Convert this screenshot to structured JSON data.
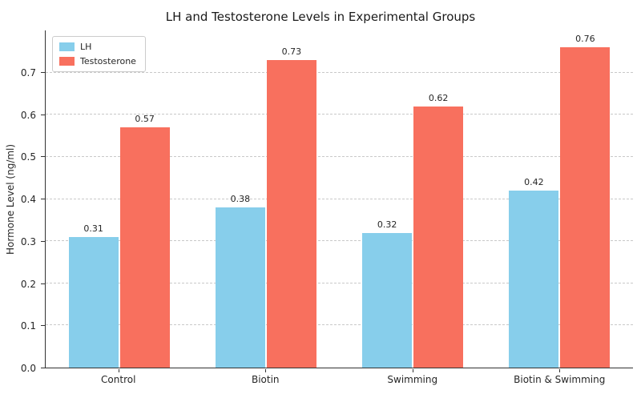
{
  "title": "LH and Testosterone Levels in Experimental Groups",
  "chart_data": {
    "type": "bar",
    "title": "LH and Testosterone Levels in Experimental Groups",
    "xlabel": "",
    "ylabel": "Hormone Level (ng/ml)",
    "categories": [
      "Control",
      "Biotin",
      "Swimming",
      "Biotin & Swimming"
    ],
    "series": [
      {
        "name": "LH",
        "color": "#87CEEB",
        "values": [
          0.31,
          0.38,
          0.32,
          0.42
        ]
      },
      {
        "name": "Testosterone",
        "color": "#F8705E",
        "values": [
          0.57,
          0.73,
          0.62,
          0.76
        ]
      }
    ],
    "ylim": [
      0,
      0.8
    ],
    "yticks": [
      0.0,
      0.1,
      0.2,
      0.3,
      0.4,
      0.5,
      0.6,
      0.7
    ],
    "grid": "horizontal-dashed",
    "legend_position": "upper-left",
    "value_labels": true,
    "value_label_format": "2dp",
    "ytick_format": "1dp"
  }
}
